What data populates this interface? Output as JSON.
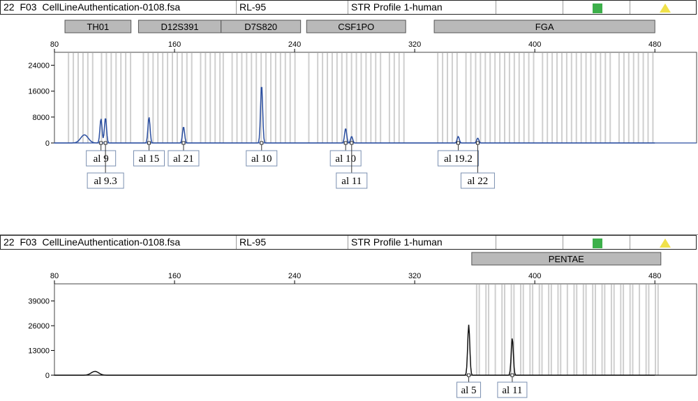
{
  "panels": [
    {
      "header": {
        "index": "22",
        "well": "F03",
        "filename": "CellLineAuthentication-0108.fsa",
        "sample": "RL-95",
        "panel": "STR Profile 1-human",
        "status_colors": {
          "square": "#3db04b",
          "triangle": "#f0e14a"
        }
      },
      "loci": [
        "TH01",
        "D12S391",
        "D7S820",
        "CSF1PO",
        "FGA"
      ],
      "alleles": [
        "al 9",
        "al 9.3",
        "al 15",
        "al 21",
        "al 10",
        "al 10",
        "al 11",
        "al 19.2",
        "al 22"
      ]
    },
    {
      "header": {
        "index": "22",
        "well": "F03",
        "filename": "CellLineAuthentication-0108.fsa",
        "sample": "RL-95",
        "panel": "STR Profile 1-human",
        "status_colors": {
          "square": "#3db04b",
          "triangle": "#f0e14a"
        }
      },
      "loci": [
        "PENTAE"
      ],
      "alleles": [
        "al 5",
        "al 11"
      ]
    }
  ],
  "chart_data": [
    {
      "type": "line",
      "title": "",
      "xlabel": "",
      "ylabel": "",
      "xlim": [
        80,
        480
      ],
      "x_ticks": [
        80,
        160,
        240,
        320,
        400,
        480
      ],
      "ylim": [
        0,
        28000
      ],
      "y_ticks": [
        0,
        8000,
        16000,
        24000
      ],
      "series_color": "#2a4ea0",
      "loci_ranges": [
        {
          "name": "TH01",
          "start": 87,
          "end": 131
        },
        {
          "name": "D12S391",
          "start": 136,
          "end": 191
        },
        {
          "name": "D7S820",
          "start": 191,
          "end": 244
        },
        {
          "name": "CSF1PO",
          "start": 248,
          "end": 314
        },
        {
          "name": "FGA",
          "start": 333,
          "end": 480
        }
      ],
      "peaks": [
        {
          "x": 100,
          "height": 2500,
          "label": ""
        },
        {
          "x": 111,
          "height": 7500,
          "label": "al 9"
        },
        {
          "x": 114,
          "height": 7800,
          "label": "al 9.3"
        },
        {
          "x": 143,
          "height": 8000,
          "label": "al 15"
        },
        {
          "x": 166,
          "height": 5000,
          "label": "al 21"
        },
        {
          "x": 218,
          "height": 18000,
          "label": "al 10"
        },
        {
          "x": 274,
          "height": 4500,
          "label": "al 10"
        },
        {
          "x": 278,
          "height": 2000,
          "label": "al 11"
        },
        {
          "x": 349,
          "height": 2000,
          "label": "al 19.2"
        },
        {
          "x": 362,
          "height": 1500,
          "label": "al 22"
        }
      ]
    },
    {
      "type": "line",
      "title": "",
      "xlabel": "",
      "ylabel": "",
      "xlim": [
        80,
        480
      ],
      "x_ticks": [
        80,
        160,
        240,
        320,
        400,
        480
      ],
      "ylim": [
        0,
        48000
      ],
      "y_ticks": [
        0,
        13000,
        26000,
        39000
      ],
      "series_color": "#111111",
      "loci_ranges": [
        {
          "name": "PENTAE",
          "start": 358,
          "end": 484
        }
      ],
      "peaks": [
        {
          "x": 107,
          "height": 2000,
          "label": ""
        },
        {
          "x": 356,
          "height": 26500,
          "label": "al 5"
        },
        {
          "x": 385,
          "height": 19500,
          "label": "al 11"
        }
      ]
    }
  ]
}
